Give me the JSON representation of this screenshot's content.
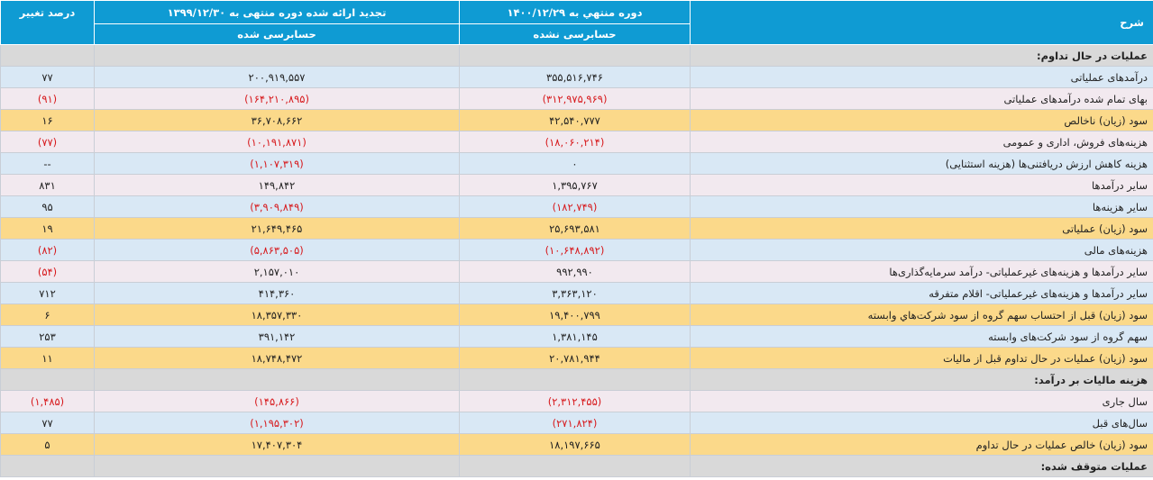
{
  "header": {
    "desc_label": "شرح",
    "period_current": "دوره منتهي به ۱۴۰۰/۱۲/۲۹",
    "period_current_status": "حسابرسی نشده",
    "period_prev": "تجدید ارائه شده دوره منتهی به ۱۳۹۹/۱۲/۳۰",
    "period_prev_status": "حسابرسی شده",
    "change_label": "درصد تغییر"
  },
  "rows": [
    {
      "style": "grey",
      "section": true,
      "label": "عملیات در حال تداوم:",
      "current": "",
      "prev": "",
      "change": ""
    },
    {
      "style": "blue",
      "label": "درآمدهای عملیاتی",
      "current": "۳۵۵,۵۱۶,۷۴۶",
      "prev": "۲۰۰,۹۱۹,۵۵۷",
      "change": "۷۷"
    },
    {
      "style": "pink",
      "label": "بهای تمام شده درآمدهای عملیاتی",
      "current": "(۳۱۲,۹۷۵,۹۶۹)",
      "prev": "(۱۶۴,۲۱۰,۸۹۵)",
      "change": "(۹۱)"
    },
    {
      "style": "yellow",
      "label": "سود (زیان) ناخالص",
      "current": "۴۲,۵۴۰,۷۷۷",
      "prev": "۳۶,۷۰۸,۶۶۲",
      "change": "۱۶"
    },
    {
      "style": "pink",
      "label": "هزینه‌های فروش، اداری و عمومی",
      "current": "(۱۸,۰۶۰,۲۱۴)",
      "prev": "(۱۰,۱۹۱,۸۷۱)",
      "change": "(۷۷)"
    },
    {
      "style": "blue",
      "label": "هزینه کاهش ارزش دریافتنی‌ها (هزینه استثنایی)",
      "current": "۰",
      "prev": "(۱,۱۰۷,۳۱۹)",
      "change": "--"
    },
    {
      "style": "pink",
      "label": "سایر درآمدها",
      "current": "۱,۳۹۵,۷۶۷",
      "prev": "۱۴۹,۸۴۲",
      "change": "۸۳۱"
    },
    {
      "style": "blue",
      "label": "سایر هزینه‌ها",
      "current": "(۱۸۲,۷۴۹)",
      "prev": "(۳,۹۰۹,۸۴۹)",
      "change": "۹۵"
    },
    {
      "style": "yellow",
      "label": "سود (زیان) عملیاتی",
      "current": "۲۵,۶۹۳,۵۸۱",
      "prev": "۲۱,۶۴۹,۴۶۵",
      "change": "۱۹"
    },
    {
      "style": "blue",
      "label": "هزینه‌های مالی",
      "current": "(۱۰,۶۴۸,۸۹۲)",
      "prev": "(۵,۸۶۳,۵۰۵)",
      "change": "(۸۲)"
    },
    {
      "style": "pink",
      "label": "سایر درآمدها و هزینه‌های غیرعملیاتی- درآمد سرمایه‌گذاری‌ها",
      "current": "۹۹۲,۹۹۰",
      "prev": "۲,۱۵۷,۰۱۰",
      "change": "(۵۴)"
    },
    {
      "style": "blue",
      "label": "سایر درآمدها و هزینه‌های غیرعملیاتی- اقلام متفرقه",
      "current": "۳,۳۶۳,۱۲۰",
      "prev": "۴۱۴,۳۶۰",
      "change": "۷۱۲"
    },
    {
      "style": "yellow",
      "label": "سود (زیان) قبل از احتساب سهم گروه از سود شرکت‌هاي وابسته",
      "current": "۱۹,۴۰۰,۷۹۹",
      "prev": "۱۸,۳۵۷,۳۳۰",
      "change": "۶"
    },
    {
      "style": "blue",
      "label": "سهم گروه از سود شرکت‌های وابسته",
      "current": "۱,۳۸۱,۱۴۵",
      "prev": "۳۹۱,۱۴۲",
      "change": "۲۵۳"
    },
    {
      "style": "yellow",
      "label": "سود (زیان) عملیات در حال تداوم قبل از مالیات",
      "current": "۲۰,۷۸۱,۹۴۴",
      "prev": "۱۸,۷۴۸,۴۷۲",
      "change": "۱۱"
    },
    {
      "style": "grey",
      "section": true,
      "label": "هزینه مالیات بر درآمد:",
      "current": "",
      "prev": "",
      "change": ""
    },
    {
      "style": "pink",
      "label": "سال جاری",
      "current": "(۲,۳۱۲,۴۵۵)",
      "prev": "(۱۴۵,۸۶۶)",
      "change": "(۱,۴۸۵)"
    },
    {
      "style": "blue",
      "label": "سال‌های قبل",
      "current": "(۲۷۱,۸۲۴)",
      "prev": "(۱,۱۹۵,۳۰۲)",
      "change": "۷۷"
    },
    {
      "style": "yellow",
      "label": "سود (زیان) خالص عملیات در حال تداوم",
      "current": "۱۸,۱۹۷,۶۶۵",
      "prev": "۱۷,۴۰۷,۳۰۴",
      "change": "۵"
    },
    {
      "style": "grey",
      "section": true,
      "label": "عملیات متوقف شده:",
      "current": "",
      "prev": "",
      "change": ""
    }
  ]
}
